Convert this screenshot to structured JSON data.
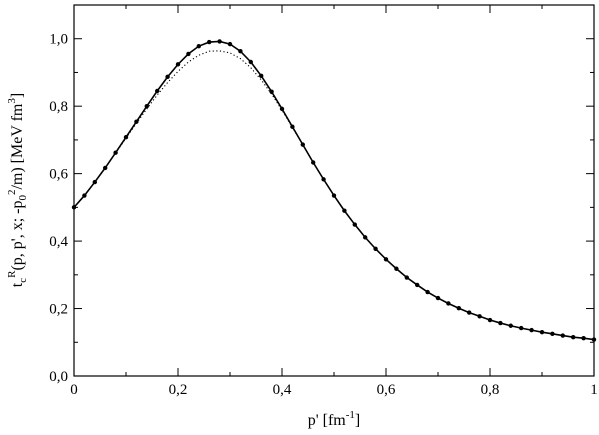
{
  "chart_data": {
    "type": "line",
    "title": "",
    "xlabel": {
      "base": "p' [fm",
      "sup": "-1",
      "end": "]"
    },
    "ylabel": {
      "parts": [
        {
          "t": "t",
          "k": "n"
        },
        {
          "t": "c",
          "k": "sub"
        },
        {
          "t": "R",
          "k": "sup"
        },
        {
          "t": "(p, p', x; -p",
          "k": "n"
        },
        {
          "t": "0",
          "k": "sub"
        },
        {
          "t": "2",
          "k": "sup"
        },
        {
          "t": "/m) [MeV fm",
          "k": "n"
        },
        {
          "t": "3",
          "k": "sup"
        },
        {
          "t": "]",
          "k": "n"
        }
      ]
    },
    "xlim": [
      0,
      1
    ],
    "ylim": [
      0,
      1.1
    ],
    "x_ticks": [
      "0",
      "0,2",
      "0,4",
      "0,6",
      "0,8",
      "1"
    ],
    "x_tick_values": [
      0,
      0.2,
      0.4,
      0.6,
      0.8,
      1.0
    ],
    "y_ticks": [
      "0,0",
      "0,2",
      "0,4",
      "0,6",
      "0,8",
      "1,0"
    ],
    "y_tick_values": [
      0,
      0.2,
      0.4,
      0.6,
      0.8,
      1.0
    ],
    "grid": false,
    "series": [
      {
        "style": "solid",
        "color": "#000000",
        "x": [
          0,
          0.02,
          0.04,
          0.06,
          0.08,
          0.1,
          0.12,
          0.14,
          0.16,
          0.18,
          0.2,
          0.22,
          0.24,
          0.26,
          0.28,
          0.3,
          0.32,
          0.34,
          0.36,
          0.38,
          0.4,
          0.42,
          0.44,
          0.46,
          0.48,
          0.5,
          0.52,
          0.54,
          0.56,
          0.58,
          0.6,
          0.62,
          0.64,
          0.66,
          0.68,
          0.7,
          0.72,
          0.74,
          0.76,
          0.78,
          0.8,
          0.82,
          0.84,
          0.86,
          0.88,
          0.9,
          0.92,
          0.94,
          0.96,
          0.98,
          1.0
        ],
        "y": [
          0.5,
          0.535,
          0.575,
          0.617,
          0.662,
          0.708,
          0.754,
          0.8,
          0.845,
          0.887,
          0.924,
          0.955,
          0.978,
          0.99,
          0.992,
          0.984,
          0.963,
          0.931,
          0.89,
          0.843,
          0.792,
          0.739,
          0.686,
          0.633,
          0.583,
          0.535,
          0.49,
          0.449,
          0.411,
          0.377,
          0.346,
          0.318,
          0.292,
          0.27,
          0.249,
          0.231,
          0.215,
          0.201,
          0.188,
          0.177,
          0.166,
          0.157,
          0.149,
          0.142,
          0.136,
          0.13,
          0.125,
          0.12,
          0.115,
          0.112,
          0.108
        ]
      },
      {
        "style": "dotted",
        "color": "#000000",
        "x": [
          0,
          0.02,
          0.04,
          0.06,
          0.08,
          0.1,
          0.12,
          0.14,
          0.16,
          0.18,
          0.2,
          0.22,
          0.24,
          0.26,
          0.28,
          0.3,
          0.32,
          0.34,
          0.36,
          0.38,
          0.4,
          0.42,
          0.44,
          0.46,
          0.48,
          0.5
        ],
        "y": [
          0.5,
          0.535,
          0.575,
          0.617,
          0.661,
          0.705,
          0.749,
          0.792,
          0.833,
          0.87,
          0.903,
          0.931,
          0.951,
          0.963,
          0.964,
          0.958,
          0.941,
          0.914,
          0.878,
          0.836,
          0.788,
          0.737,
          0.686,
          0.633,
          0.583,
          0.535
        ]
      }
    ]
  }
}
